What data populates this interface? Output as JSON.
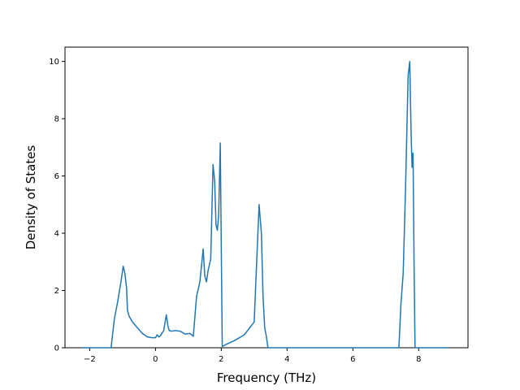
{
  "chart_data": {
    "type": "line",
    "title": "",
    "xlabel": "Frequency (THz)",
    "ylabel": "Density of States",
    "xlim": [
      -2.75,
      9.5
    ],
    "ylim": [
      0,
      10.5
    ],
    "xticks": [
      -2,
      0,
      2,
      4,
      6,
      8
    ],
    "yticks": [
      0,
      2,
      4,
      6,
      8,
      10
    ],
    "xtick_labels": [
      "−2",
      "0",
      "2",
      "4",
      "6",
      "8"
    ],
    "ytick_labels": [
      "0",
      "2",
      "4",
      "6",
      "8",
      "10"
    ],
    "grid": false,
    "legend": "none",
    "series": [
      {
        "color": "#1f77b4",
        "x": [
          -2.25,
          -1.35,
          -1.25,
          -1.15,
          -1.05,
          -0.98,
          -0.93,
          -0.88,
          -0.85,
          -0.8,
          -0.7,
          -0.55,
          -0.4,
          -0.25,
          -0.1,
          0.0,
          0.05,
          0.1,
          0.15,
          0.25,
          0.33,
          0.38,
          0.42,
          0.48,
          0.6,
          0.75,
          0.9,
          1.05,
          1.15,
          1.25,
          1.35,
          1.45,
          1.5,
          1.55,
          1.6,
          1.68,
          1.75,
          1.8,
          1.84,
          1.88,
          1.92,
          1.97,
          2.03,
          2.06,
          2.09,
          2.12,
          2.4,
          2.7,
          3.0,
          3.15,
          3.22,
          3.27,
          3.32,
          3.37,
          3.42,
          3.48,
          3.55,
          3.65,
          4.0,
          7.4,
          7.46,
          7.53,
          7.6,
          7.68,
          7.73,
          7.77,
          7.8,
          7.83,
          7.86,
          7.89,
          7.95,
          8.0,
          8.9
        ],
        "values": [
          0,
          0,
          1.0,
          1.6,
          2.3,
          2.85,
          2.6,
          2.1,
          1.3,
          1.1,
          0.9,
          0.7,
          0.5,
          0.38,
          0.35,
          0.35,
          0.45,
          0.38,
          0.42,
          0.6,
          1.15,
          0.75,
          0.6,
          0.58,
          0.6,
          0.58,
          0.48,
          0.5,
          0.4,
          1.8,
          2.3,
          3.45,
          2.5,
          2.3,
          2.7,
          3.1,
          6.4,
          5.8,
          4.3,
          4.1,
          4.6,
          7.15,
          0.05,
          0.06,
          0.08,
          0.1,
          0.25,
          0.45,
          0.9,
          5.0,
          4.0,
          1.8,
          0.7,
          0.4,
          0,
          0,
          0,
          0,
          0,
          0,
          1.5,
          2.6,
          5.5,
          9.5,
          10.0,
          7.5,
          6.3,
          6.8,
          3.0,
          0,
          0,
          0,
          0
        ]
      }
    ]
  }
}
